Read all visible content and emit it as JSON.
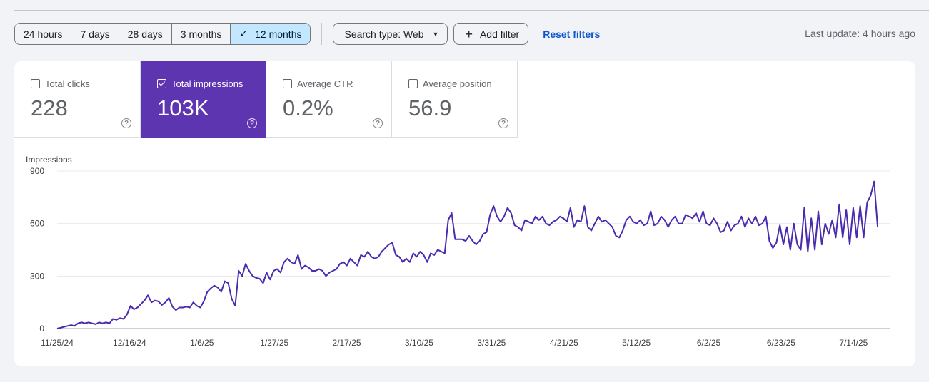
{
  "toolbar": {
    "ranges": [
      "24 hours",
      "7 days",
      "28 days",
      "3 months",
      "12 months"
    ],
    "active_range": "12 months",
    "search_type": "Search type: Web",
    "add_filter": "Add filter",
    "reset_filters": "Reset filters",
    "last_update": "Last update: 4 hours ago"
  },
  "metrics": [
    {
      "label": "Total clicks",
      "value": "228",
      "checked": false
    },
    {
      "label": "Total impressions",
      "value": "103K",
      "checked": true
    },
    {
      "label": "Average CTR",
      "value": "0.2%",
      "checked": false
    },
    {
      "label": "Average position",
      "value": "56.9",
      "checked": false
    }
  ],
  "colors": {
    "series": "#4a2bb0",
    "active_metric": "#5e35b1",
    "active_range": "#c2e7ff",
    "link": "#0b57d0"
  },
  "chart_data": {
    "type": "line",
    "ylabel": "Impressions",
    "ylim": [
      0,
      900
    ],
    "yticks": [
      0,
      300,
      600,
      900
    ],
    "xtick_labels": [
      "11/25/24",
      "12/16/24",
      "1/6/25",
      "1/27/25",
      "2/17/25",
      "3/10/25",
      "3/31/25",
      "4/21/25",
      "5/12/25",
      "6/2/25",
      "6/23/25",
      "7/14/25"
    ],
    "x_start": "11/25/24",
    "x_end": "7/21/25",
    "grid": true,
    "series": [
      {
        "name": "Impressions",
        "values": [
          0,
          5,
          10,
          15,
          20,
          15,
          30,
          35,
          30,
          35,
          30,
          25,
          35,
          30,
          35,
          30,
          55,
          50,
          60,
          55,
          80,
          130,
          110,
          120,
          140,
          160,
          190,
          150,
          160,
          155,
          135,
          150,
          175,
          125,
          105,
          120,
          120,
          125,
          120,
          150,
          130,
          120,
          155,
          210,
          230,
          245,
          235,
          210,
          270,
          260,
          170,
          130,
          330,
          300,
          370,
          330,
          300,
          290,
          285,
          260,
          320,
          280,
          330,
          340,
          320,
          380,
          400,
          380,
          370,
          420,
          340,
          360,
          350,
          330,
          330,
          340,
          330,
          300,
          320,
          330,
          340,
          370,
          380,
          360,
          400,
          380,
          360,
          420,
          410,
          440,
          410,
          400,
          410,
          440,
          460,
          480,
          490,
          420,
          410,
          380,
          400,
          380,
          430,
          410,
          440,
          420,
          380,
          430,
          420,
          450,
          440,
          430,
          620,
          660,
          510,
          510,
          510,
          500,
          530,
          500,
          480,
          500,
          540,
          550,
          650,
          700,
          640,
          610,
          640,
          690,
          660,
          590,
          580,
          560,
          620,
          610,
          600,
          640,
          620,
          640,
          600,
          590,
          610,
          620,
          640,
          630,
          610,
          690,
          580,
          620,
          610,
          700,
          580,
          560,
          600,
          640,
          610,
          620,
          600,
          580,
          530,
          520,
          560,
          620,
          640,
          610,
          600,
          620,
          590,
          600,
          670,
          590,
          600,
          640,
          620,
          580,
          620,
          640,
          600,
          600,
          650,
          640,
          630,
          660,
          610,
          670,
          600,
          590,
          630,
          600,
          550,
          560,
          610,
          560,
          590,
          600,
          640,
          580,
          630,
          600,
          640,
          590,
          600,
          640,
          500,
          460,
          490,
          590,
          480,
          580,
          450,
          600,
          480,
          450,
          690,
          440,
          630,
          450,
          670,
          480,
          600,
          540,
          620,
          520,
          710,
          520,
          680,
          480,
          690,
          520,
          700,
          520,
          720,
          760,
          840,
          580
        ]
      }
    ]
  }
}
